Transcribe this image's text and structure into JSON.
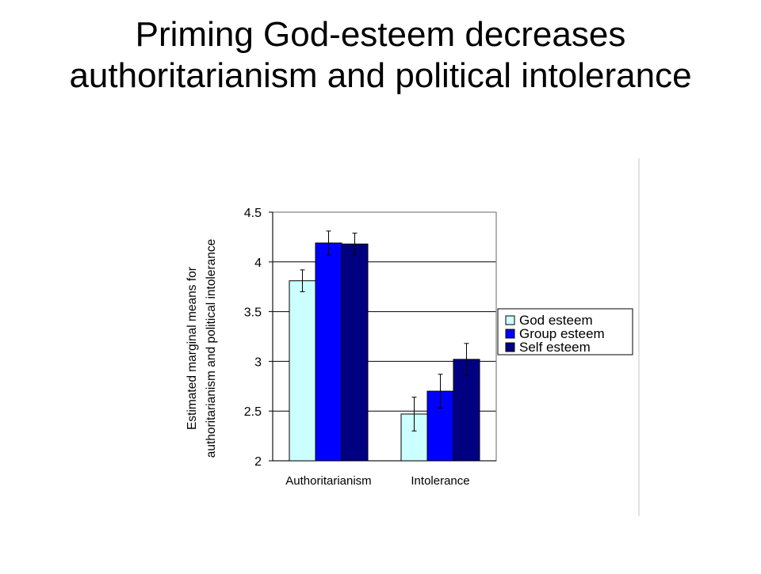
{
  "slide": {
    "title": "Priming God-esteem decreases authoritarianism and political intolerance"
  },
  "chart_data": {
    "type": "bar",
    "title": "",
    "ylabel_lines": [
      "Estimated marginal means for",
      "authoritarianism and political intolerance"
    ],
    "xlabel": "",
    "ylim": [
      2,
      4.5
    ],
    "yticks": [
      2,
      2.5,
      3,
      3.5,
      4,
      4.5
    ],
    "ytick_labels": [
      "2",
      "2.5",
      "3",
      "3.5",
      "4",
      "4.5"
    ],
    "grid": true,
    "legend_position": "right",
    "categories": [
      "Authoritarianism",
      "Intolerance"
    ],
    "series": [
      {
        "name": "God esteem",
        "color": "#ccffff",
        "values": [
          3.81,
          2.47
        ],
        "errors": [
          0.11,
          0.17
        ]
      },
      {
        "name": "Group esteem",
        "color": "#0000ff",
        "values": [
          4.19,
          2.7
        ],
        "errors": [
          0.12,
          0.17
        ]
      },
      {
        "name": "Self esteem",
        "color": "#000080",
        "values": [
          4.18,
          3.02
        ],
        "errors": [
          0.11,
          0.16
        ]
      }
    ]
  }
}
